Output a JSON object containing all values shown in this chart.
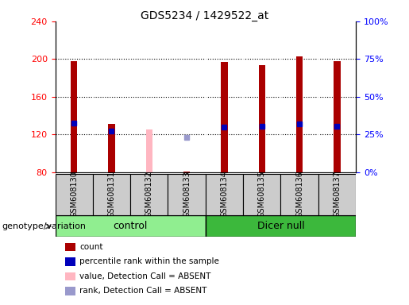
{
  "title": "GDS5234 / 1429522_at",
  "samples": [
    "GSM608130",
    "GSM608131",
    "GSM608132",
    "GSM608133",
    "GSM608134",
    "GSM608135",
    "GSM608136",
    "GSM608137"
  ],
  "count_values": [
    198,
    131,
    null,
    81,
    197,
    194,
    203,
    198
  ],
  "count_absent": [
    null,
    null,
    125,
    null,
    null,
    null,
    null,
    null
  ],
  "rank_values": [
    132,
    124,
    null,
    null,
    128,
    129,
    131,
    129
  ],
  "rank_absent": [
    null,
    null,
    null,
    117,
    null,
    null,
    null,
    null
  ],
  "ylim_left": [
    80,
    240
  ],
  "ylim_right": [
    0,
    100
  ],
  "yticks_left": [
    80,
    120,
    160,
    200,
    240
  ],
  "yticks_right": [
    0,
    25,
    50,
    75,
    100
  ],
  "ytick_labels_right": [
    "0%",
    "25%",
    "50%",
    "75%",
    "100%"
  ],
  "control_color": "#90EE90",
  "dicer_color": "#3CB83C",
  "bar_width": 0.18,
  "count_color": "#AA0000",
  "rank_color": "#0000BB",
  "absent_count_color": "#FFB6C1",
  "absent_rank_color": "#9999CC",
  "plot_bg": "#FFFFFF",
  "xtick_bg": "#CCCCCC",
  "group_label": "genotype/variation",
  "legend_items": [
    {
      "color": "#AA0000",
      "label": "count"
    },
    {
      "color": "#0000BB",
      "label": "percentile rank within the sample"
    },
    {
      "color": "#FFB6C1",
      "label": "value, Detection Call = ABSENT"
    },
    {
      "color": "#9999CC",
      "label": "rank, Detection Call = ABSENT"
    }
  ]
}
